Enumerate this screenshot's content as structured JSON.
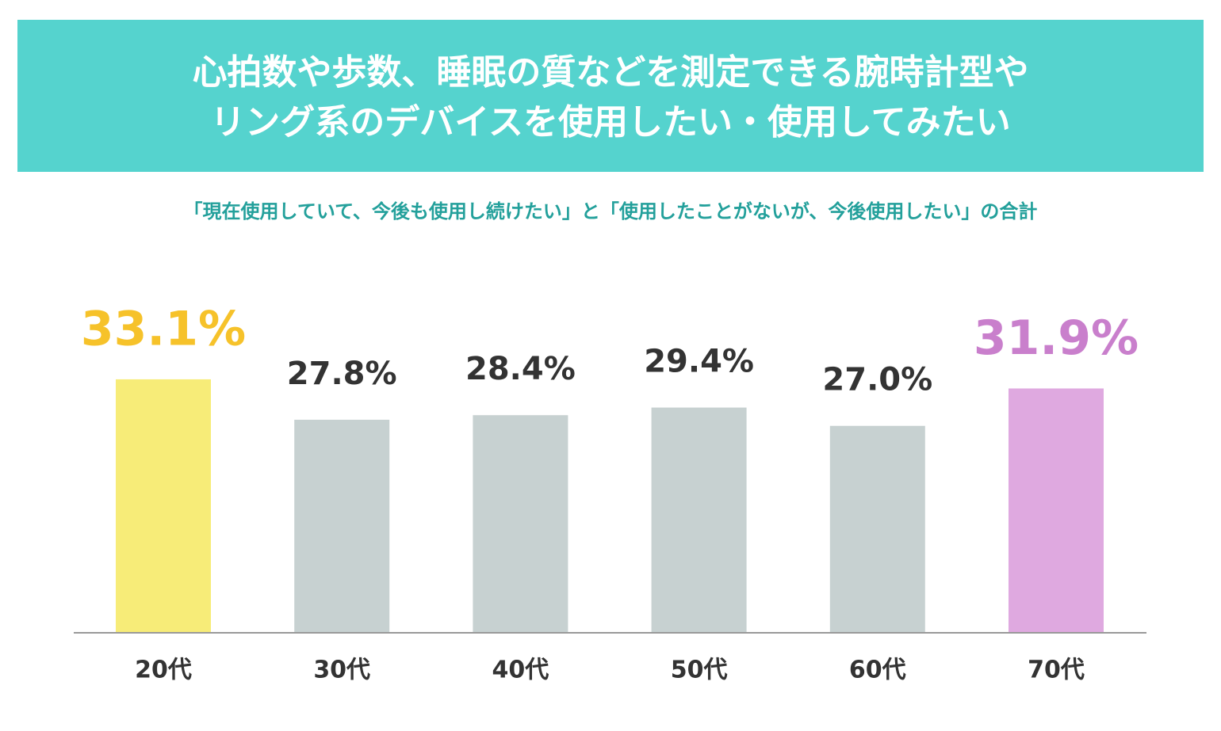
{
  "chart_data": {
    "type": "bar",
    "title": [
      "心拍数や歩数、睡眠の質などを測定できる腕時計型や",
      "リング系のデバイスを使用したい・使用してみたい"
    ],
    "subtitle": "「現在使用していて、今後も使用し続けたい」と「使用したことがないが、今後使用したい」の合計",
    "categories": [
      "20代",
      "30代",
      "40代",
      "50代",
      "60代",
      "70代"
    ],
    "values": [
      33.1,
      27.8,
      28.4,
      29.4,
      27.0,
      31.9
    ],
    "value_labels": [
      "33.1%",
      "27.8%",
      "28.4%",
      "29.4%",
      "27.0%",
      "31.9%"
    ],
    "colors": [
      "#f7ec78",
      "#c7d1d1",
      "#c7d1d1",
      "#c7d1d1",
      "#c7d1d1",
      "#dfa9e0"
    ],
    "label_colors": [
      "#f6c22a",
      "#333333",
      "#333333",
      "#333333",
      "#333333",
      "#c97fcc"
    ]
  }
}
